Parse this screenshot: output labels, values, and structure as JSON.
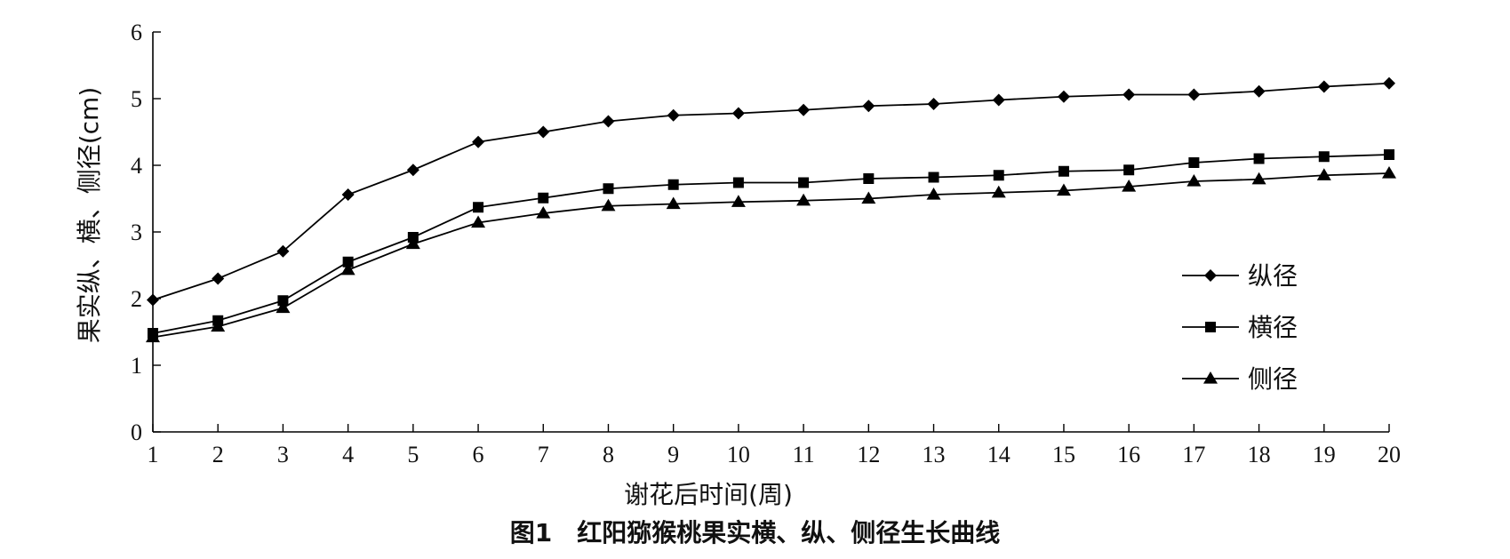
{
  "chart_data": {
    "type": "line",
    "title": "图1　红阳猕猴桃果实横、纵、侧径生长曲线",
    "xlabel": "谢花后时间(周)",
    "ylabel": "果实纵、横、侧径(cm)",
    "x": [
      1,
      2,
      3,
      4,
      5,
      6,
      7,
      8,
      9,
      10,
      11,
      12,
      13,
      14,
      15,
      16,
      17,
      18,
      19,
      20
    ],
    "xlim": [
      1,
      20
    ],
    "ylim": [
      0,
      6
    ],
    "xticks": [
      "1",
      "2",
      "3",
      "4",
      "5",
      "6",
      "7",
      "8",
      "9",
      "10",
      "11",
      "12",
      "13",
      "14",
      "15",
      "16",
      "17",
      "18",
      "19",
      "20"
    ],
    "yticks": [
      "0",
      "1",
      "2",
      "3",
      "4",
      "5",
      "6"
    ],
    "grid": false,
    "legend_position": "right",
    "series": [
      {
        "name": "纵径",
        "marker": "diamond",
        "color": "#000000",
        "values": [
          1.98,
          2.3,
          2.71,
          3.56,
          3.93,
          4.35,
          4.5,
          4.66,
          4.75,
          4.78,
          4.83,
          4.89,
          4.92,
          4.98,
          5.03,
          5.06,
          5.06,
          5.11,
          5.18,
          5.23
        ]
      },
      {
        "name": "横径",
        "marker": "square",
        "color": "#000000",
        "values": [
          1.48,
          1.67,
          1.97,
          2.55,
          2.92,
          3.37,
          3.51,
          3.65,
          3.71,
          3.74,
          3.74,
          3.8,
          3.82,
          3.85,
          3.91,
          3.93,
          4.04,
          4.1,
          4.13,
          4.16
        ]
      },
      {
        "name": "侧径",
        "marker": "triangle",
        "color": "#000000",
        "values": [
          1.42,
          1.58,
          1.86,
          2.43,
          2.82,
          3.14,
          3.28,
          3.39,
          3.42,
          3.45,
          3.47,
          3.5,
          3.56,
          3.59,
          3.62,
          3.68,
          3.76,
          3.79,
          3.85,
          3.88
        ]
      }
    ]
  }
}
